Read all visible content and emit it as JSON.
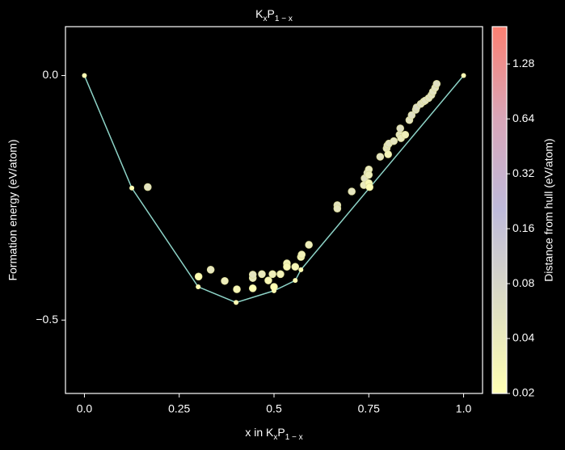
{
  "chart_data": {
    "type": "hull-scatter",
    "title": [
      "K",
      "x",
      "P",
      "1 − x"
    ],
    "xlabel": [
      "x in K",
      "x",
      "P",
      "1 − x"
    ],
    "ylabel": "Formation energy (eV/atom)",
    "colorbar_label": "Distance from hull (eV/atom)",
    "xlim": [
      -0.05,
      1.05
    ],
    "ylim": [
      -0.65,
      0.1
    ],
    "xticks": [
      {
        "value": 0,
        "label": "0.0"
      },
      0.25,
      0.5,
      0.75,
      {
        "value": 1,
        "label": "1.0"
      }
    ],
    "yticks": [
      {
        "value": 0,
        "label": "0.0"
      },
      {
        "value": -0.5,
        "label": "−0.5"
      }
    ],
    "clim": [
      0.02,
      2.05
    ],
    "clog": true,
    "cticks": [
      0.02,
      0.04,
      0.08,
      0.16,
      0.32,
      0.64,
      1.28
    ],
    "colormap": [
      "#ffffb3",
      "#dcdcc4",
      "#bebada",
      "#d8a6b8",
      "#fb8072"
    ],
    "hull": {
      "color": "#8dd3c7",
      "point_color": "#ffffb3",
      "x": [
        0,
        0.125,
        0.3,
        0.4,
        0.5,
        0.556,
        0.571,
        1
      ],
      "y": [
        0,
        -0.23,
        -0.432,
        -0.464,
        -0.44,
        -0.419,
        -0.397,
        0
      ]
    },
    "points": {
      "x": [
        0.167,
        0.301,
        0.333,
        0.37,
        0.402,
        0.444,
        0.444,
        0.444,
        0.468,
        0.485,
        0.496,
        0.517,
        0.5,
        0.534,
        0.534,
        0.556,
        0.571,
        0.573,
        0.592,
        0.667,
        0.667,
        0.705,
        0.737,
        0.739,
        0.746,
        0.75,
        0.75,
        0.752,
        0.75,
        0.78,
        0.797,
        0.799,
        0.803,
        0.801,
        0.816,
        0.831,
        0.833,
        0.835,
        0.846,
        0.857,
        0.863,
        0.874,
        0.876,
        0.887,
        0.895,
        0.899,
        0.908,
        0.915,
        0.919,
        0.925,
        0.929
      ],
      "y": [
        -0.228,
        -0.411,
        -0.397,
        -0.42,
        -0.437,
        -0.414,
        -0.435,
        -0.407,
        -0.406,
        -0.419,
        -0.406,
        -0.406,
        -0.432,
        -0.384,
        -0.391,
        -0.391,
        -0.371,
        -0.366,
        -0.346,
        -0.265,
        -0.272,
        -0.237,
        -0.224,
        -0.21,
        -0.199,
        -0.192,
        -0.22,
        -0.228,
        -0.203,
        -0.166,
        -0.149,
        -0.143,
        -0.139,
        -0.161,
        -0.134,
        -0.121,
        -0.108,
        -0.128,
        -0.121,
        -0.091,
        -0.081,
        -0.07,
        -0.065,
        -0.058,
        -0.053,
        -0.051,
        -0.046,
        -0.04,
        -0.033,
        -0.025,
        -0.017
      ],
      "distance": [
        0.05,
        0.021,
        0.044,
        0.035,
        0.027,
        0.04,
        0.02,
        0.046,
        0.04,
        0.025,
        0.034,
        0.03,
        0.02,
        0.03,
        0.025,
        0.028,
        0.026,
        0.03,
        0.035,
        0.05,
        0.045,
        0.045,
        0.04,
        0.052,
        0.06,
        0.04,
        0.025,
        0.022,
        0.035,
        0.05,
        0.045,
        0.05,
        0.05,
        0.03,
        0.045,
        0.044,
        0.055,
        0.04,
        0.035,
        0.05,
        0.055,
        0.055,
        0.06,
        0.055,
        0.05,
        0.05,
        0.05,
        0.05,
        0.05,
        0.05,
        0.055
      ]
    }
  }
}
